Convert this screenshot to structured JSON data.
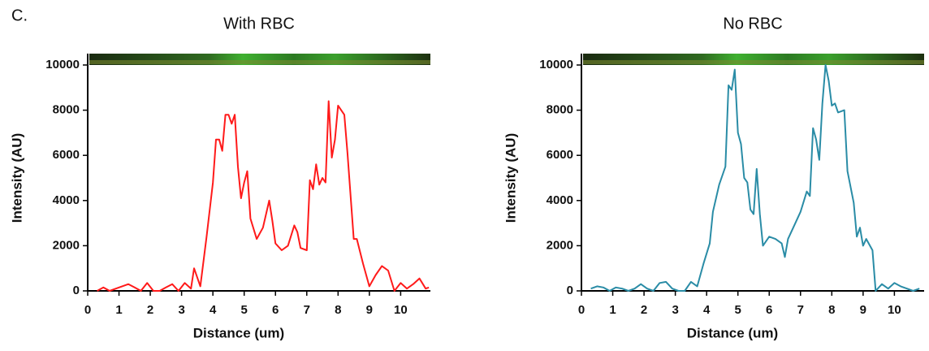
{
  "panel_label": "C.",
  "chart_data": [
    {
      "type": "line",
      "title": "With RBC",
      "x_label": "Distance (um)",
      "y_label": "Intensity (AU)",
      "xlim": [
        0,
        10.95
      ],
      "ylim": [
        0,
        10000
      ],
      "xticks": [
        0,
        1,
        2,
        3,
        4,
        5,
        6,
        7,
        8,
        9,
        10
      ],
      "yticks": [
        0,
        2000,
        4000,
        6000,
        8000,
        10000
      ],
      "x": [
        0.3,
        0.5,
        0.7,
        0.9,
        1.1,
        1.3,
        1.5,
        1.7,
        1.9,
        2.1,
        2.3,
        2.5,
        2.7,
        2.9,
        3.1,
        3.3,
        3.4,
        3.6,
        3.8,
        4.0,
        4.1,
        4.2,
        4.3,
        4.4,
        4.5,
        4.6,
        4.7,
        4.8,
        4.9,
        5.0,
        5.1,
        5.2,
        5.4,
        5.6,
        5.8,
        5.9,
        6.0,
        6.2,
        6.4,
        6.6,
        6.7,
        6.8,
        7.0,
        7.1,
        7.2,
        7.3,
        7.4,
        7.5,
        7.6,
        7.7,
        7.8,
        7.9,
        8.0,
        8.2,
        8.3,
        8.5,
        8.6,
        8.8,
        9.0,
        9.2,
        9.4,
        9.6,
        9.8,
        10.0,
        10.2,
        10.4,
        10.6,
        10.8,
        10.9
      ],
      "series": [
        {
          "color": "#ff1a1a",
          "values": [
            0,
            150,
            0,
            100,
            200,
            300,
            150,
            0,
            350,
            0,
            0,
            150,
            300,
            0,
            350,
            100,
            1000,
            200,
            2400,
            4800,
            6700,
            6700,
            6200,
            7800,
            7800,
            7400,
            7800,
            5500,
            4100,
            4800,
            5300,
            3200,
            2300,
            2800,
            4000,
            3100,
            2100,
            1800,
            2000,
            2900,
            2600,
            1900,
            1800,
            4900,
            4500,
            5600,
            4700,
            5000,
            4800,
            8400,
            5900,
            6700,
            8200,
            7800,
            6100,
            2300,
            2300,
            1200,
            200,
            700,
            1100,
            900,
            0,
            350,
            100,
            300,
            550,
            100,
            150
          ]
        }
      ]
    },
    {
      "type": "line",
      "title": "No RBC",
      "x_label": "Distance (um)",
      "y_label": "Intensity (AU)",
      "xlim": [
        0,
        10.95
      ],
      "ylim": [
        0,
        10000
      ],
      "xticks": [
        0,
        1,
        2,
        3,
        4,
        5,
        6,
        7,
        8,
        9,
        10
      ],
      "yticks": [
        0,
        2000,
        4000,
        6000,
        8000,
        10000
      ],
      "x": [
        0.3,
        0.5,
        0.7,
        0.9,
        1.1,
        1.3,
        1.5,
        1.7,
        1.9,
        2.1,
        2.3,
        2.5,
        2.7,
        2.9,
        3.1,
        3.3,
        3.5,
        3.7,
        3.9,
        4.1,
        4.2,
        4.4,
        4.6,
        4.7,
        4.8,
        4.9,
        5.0,
        5.1,
        5.2,
        5.3,
        5.4,
        5.5,
        5.6,
        5.7,
        5.8,
        6.0,
        6.2,
        6.4,
        6.5,
        6.6,
        6.8,
        7.0,
        7.2,
        7.3,
        7.4,
        7.5,
        7.6,
        7.7,
        7.8,
        7.9,
        8.0,
        8.1,
        8.2,
        8.4,
        8.5,
        8.7,
        8.8,
        8.9,
        9.0,
        9.1,
        9.3,
        9.4,
        9.6,
        9.8,
        10.0,
        10.2,
        10.4,
        10.6,
        10.8
      ],
      "series": [
        {
          "color": "#2a8ca6",
          "values": [
            100,
            200,
            150,
            0,
            150,
            100,
            0,
            100,
            300,
            100,
            0,
            350,
            400,
            100,
            0,
            0,
            400,
            200,
            1200,
            2100,
            3500,
            4700,
            5500,
            9100,
            8900,
            9800,
            7000,
            6500,
            5000,
            4800,
            3600,
            3400,
            5400,
            3400,
            2000,
            2400,
            2300,
            2100,
            1500,
            2300,
            2900,
            3500,
            4400,
            4200,
            7200,
            6700,
            5800,
            8300,
            10000,
            9300,
            8200,
            8300,
            7900,
            8000,
            5300,
            3900,
            2400,
            2800,
            2000,
            2300,
            1800,
            0,
            300,
            100,
            350,
            200,
            100,
            0,
            100
          ]
        }
      ]
    }
  ]
}
